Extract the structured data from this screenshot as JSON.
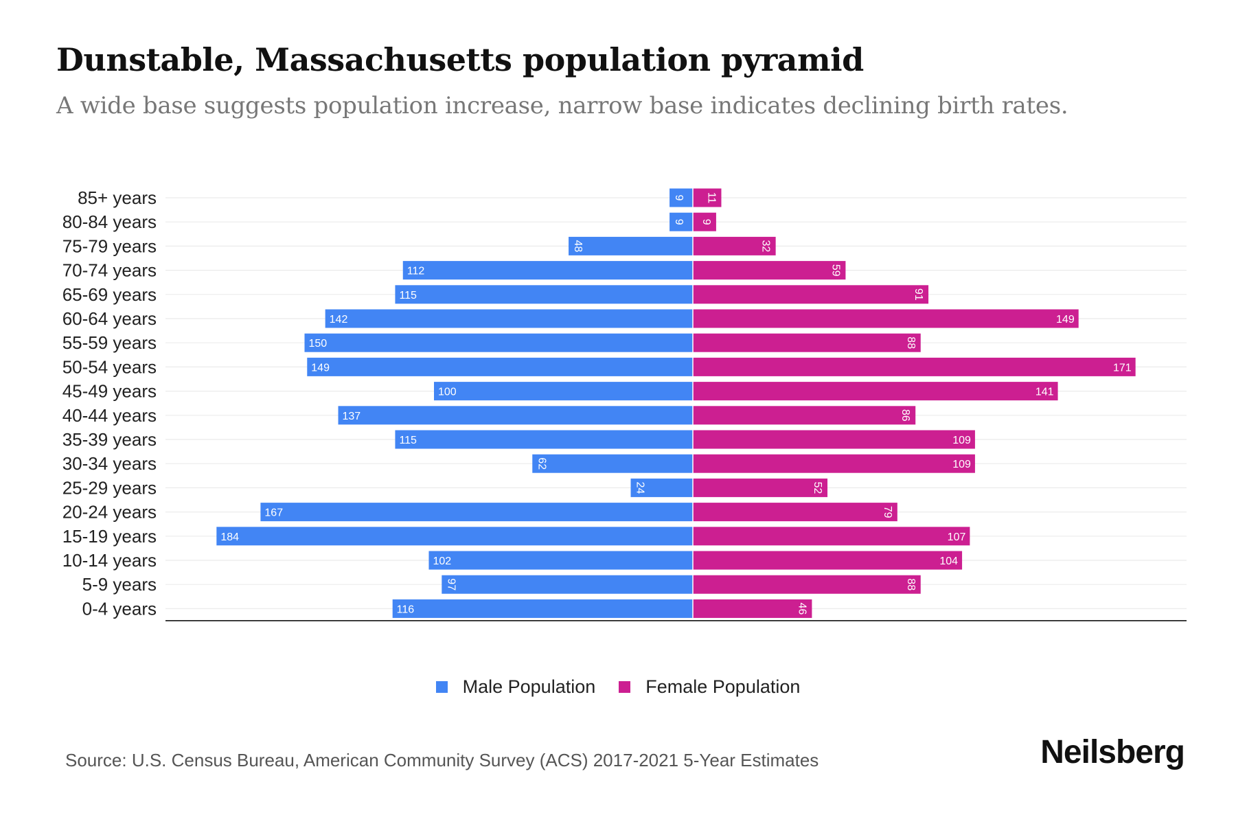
{
  "header": {
    "title": "Dunstable, Massachusetts population pyramid",
    "subtitle": "A wide base suggests population increase, narrow base indicates declining birth rates."
  },
  "legend": [
    {
      "label": "Male Population",
      "color": "#4285f4"
    },
    {
      "label": "Female Population",
      "color": "#cc1f91"
    }
  ],
  "footer": {
    "source": "Source: U.S. Census Bureau, American Community Survey (ACS) 2017-2021 5-Year Estimates",
    "brand": "Neilsberg"
  },
  "chart_data": {
    "type": "bar",
    "orientation": "horizontal-diverging",
    "title": "Dunstable, Massachusetts population pyramid",
    "subtitle": "A wide base suggests population increase, narrow base indicates declining birth rates.",
    "xlabel": "",
    "ylabel": "",
    "grid": true,
    "legend_position": "bottom-center",
    "categories": [
      "85+ years",
      "80-84 years",
      "75-79 years",
      "70-74 years",
      "65-69 years",
      "60-64 years",
      "55-59 years",
      "50-54 years",
      "45-49 years",
      "40-44 years",
      "35-39 years",
      "30-34 years",
      "25-29 years",
      "20-24 years",
      "15-19 years",
      "10-14 years",
      "5-9 years",
      "0-4 years"
    ],
    "series": [
      {
        "name": "Male Population",
        "color": "#4285f4",
        "values": [
          9,
          9,
          48,
          112,
          115,
          142,
          150,
          149,
          100,
          137,
          115,
          62,
          24,
          167,
          184,
          102,
          97,
          116
        ]
      },
      {
        "name": "Female Population",
        "color": "#cc1f91",
        "values": [
          11,
          9,
          32,
          59,
          91,
          149,
          88,
          171,
          141,
          86,
          109,
          109,
          52,
          79,
          107,
          104,
          88,
          46
        ]
      }
    ],
    "xlim": [
      -184,
      171
    ]
  }
}
